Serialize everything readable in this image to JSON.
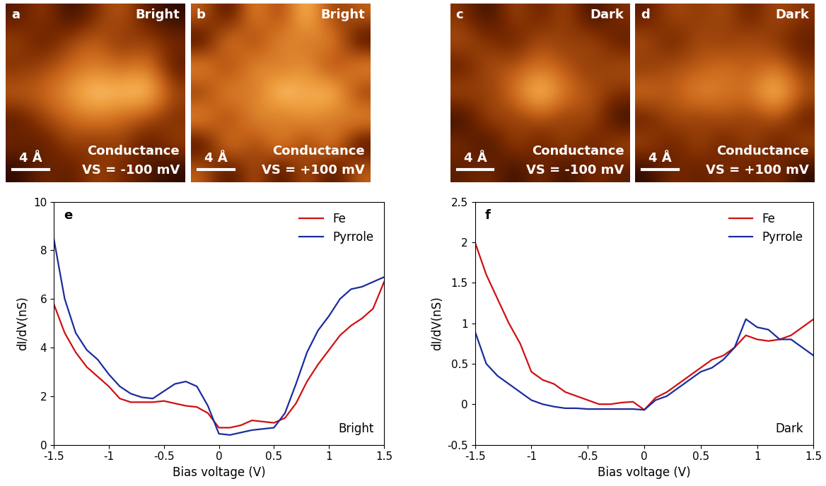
{
  "chart_data": [
    {
      "type": "heatmap",
      "panel": "a",
      "title": "Bright",
      "annotations": [
        "Conductance",
        "VS = -100 mV"
      ],
      "scale_bar": "4 Å",
      "tick_labels": false,
      "cells": [
        [
          0.3,
          0.5,
          0.2,
          0.4,
          0.6,
          0.3,
          0.2
        ],
        [
          0.5,
          0.3,
          0.5,
          0.6,
          0.4,
          0.5,
          0.4
        ],
        [
          0.4,
          0.5,
          0.6,
          0.7,
          0.6,
          0.7,
          0.3
        ],
        [
          0.6,
          0.6,
          0.8,
          0.95,
          0.9,
          1.0,
          0.5
        ],
        [
          0.3,
          0.5,
          0.6,
          0.7,
          0.6,
          0.5,
          0.4
        ],
        [
          0.4,
          0.3,
          0.5,
          0.4,
          0.5,
          0.3,
          0.5
        ],
        [
          0.2,
          0.4,
          0.3,
          0.5,
          0.4,
          0.3,
          0.2
        ]
      ]
    },
    {
      "type": "heatmap",
      "panel": "b",
      "title": "Bright",
      "annotations": [
        "Conductance",
        "VS = +100 mV"
      ],
      "scale_bar": "4 Å",
      "tick_labels": false,
      "cells": [
        [
          0.5,
          0.3,
          0.6,
          0.4,
          0.7,
          0.4,
          0.5
        ],
        [
          0.3,
          0.6,
          0.4,
          0.6,
          0.5,
          0.6,
          0.3
        ],
        [
          0.6,
          0.4,
          0.6,
          0.5,
          0.6,
          0.4,
          0.6
        ],
        [
          0.4,
          0.6,
          0.5,
          0.7,
          0.6,
          0.7,
          0.4
        ],
        [
          0.6,
          0.4,
          0.6,
          0.5,
          0.6,
          0.5,
          0.6
        ],
        [
          0.3,
          0.6,
          0.4,
          0.6,
          0.4,
          0.6,
          0.3
        ],
        [
          0.5,
          0.3,
          0.5,
          0.3,
          0.5,
          0.3,
          0.5
        ]
      ]
    },
    {
      "type": "heatmap",
      "panel": "c",
      "title": "Dark",
      "annotations": [
        "Conductance",
        "VS = -100 mV"
      ],
      "scale_bar": "4 Å",
      "tick_labels": false,
      "cells": [
        [
          0.5,
          0.3,
          0.6,
          0.4,
          0.6,
          0.3,
          0.5
        ],
        [
          0.6,
          0.5,
          0.4,
          0.6,
          0.5,
          0.6,
          0.4
        ],
        [
          0.4,
          0.6,
          0.6,
          0.7,
          0.6,
          0.5,
          0.6
        ],
        [
          0.6,
          0.5,
          0.7,
          1.0,
          0.7,
          0.6,
          0.5
        ],
        [
          0.3,
          0.6,
          0.5,
          0.6,
          0.5,
          0.6,
          0.3
        ],
        [
          0.5,
          0.3,
          0.6,
          0.4,
          0.6,
          0.4,
          0.6
        ],
        [
          0.4,
          0.5,
          0.3,
          0.5,
          0.3,
          0.5,
          0.4
        ]
      ]
    },
    {
      "type": "heatmap",
      "panel": "d",
      "title": "Dark",
      "annotations": [
        "Conductance",
        "VS = +100 mV"
      ],
      "scale_bar": "4 Å",
      "tick_labels": false,
      "cells": [
        [
          0.4,
          0.6,
          0.5,
          0.6,
          0.4,
          0.6,
          0.5
        ],
        [
          0.6,
          0.4,
          0.6,
          0.5,
          0.6,
          0.5,
          0.4
        ],
        [
          0.5,
          0.6,
          0.6,
          0.7,
          0.6,
          0.7,
          0.5
        ],
        [
          0.7,
          0.6,
          0.8,
          0.7,
          0.7,
          1.0,
          0.6
        ],
        [
          0.4,
          0.6,
          0.5,
          0.6,
          0.5,
          0.6,
          0.4
        ],
        [
          0.6,
          0.4,
          0.6,
          0.4,
          0.6,
          0.4,
          0.6
        ],
        [
          0.3,
          0.5,
          0.4,
          0.5,
          0.4,
          0.5,
          0.3
        ]
      ]
    },
    {
      "type": "line",
      "panel": "e",
      "annotation": "Bright",
      "x_label": "Bias voltage (V)",
      "y_label": "dI/dV(nS)",
      "xlim": [
        -1.5,
        1.5
      ],
      "xticks": [
        -1.5,
        -1,
        -0.5,
        0,
        0.5,
        1,
        1.5
      ],
      "ylim": [
        0,
        10
      ],
      "yticks": [
        0,
        2,
        4,
        6,
        8,
        10
      ],
      "legend": "upper right",
      "x": [
        -1.5,
        -1.4,
        -1.3,
        -1.2,
        -1.1,
        -1.0,
        -0.9,
        -0.8,
        -0.7,
        -0.6,
        -0.5,
        -0.4,
        -0.3,
        -0.2,
        -0.1,
        0.0,
        0.1,
        0.2,
        0.3,
        0.4,
        0.5,
        0.6,
        0.7,
        0.8,
        0.9,
        1.0,
        1.1,
        1.2,
        1.3,
        1.4,
        1.5
      ],
      "series": [
        {
          "name": "Fe",
          "color": "#d01010",
          "values": [
            5.8,
            4.6,
            3.8,
            3.2,
            2.8,
            2.4,
            1.9,
            1.75,
            1.75,
            1.75,
            1.8,
            1.7,
            1.6,
            1.55,
            1.3,
            0.7,
            0.7,
            0.8,
            1.0,
            0.95,
            0.9,
            1.1,
            1.7,
            2.6,
            3.3,
            3.9,
            4.5,
            4.9,
            5.2,
            5.6,
            6.7
          ]
        },
        {
          "name": "Pyrrole",
          "color": "#1c2c9c",
          "values": [
            8.5,
            6.0,
            4.6,
            3.9,
            3.5,
            2.9,
            2.4,
            2.1,
            1.95,
            1.9,
            2.2,
            2.5,
            2.6,
            2.4,
            1.6,
            0.45,
            0.4,
            0.5,
            0.6,
            0.65,
            0.7,
            1.3,
            2.5,
            3.8,
            4.7,
            5.3,
            6.0,
            6.4,
            6.5,
            6.7,
            6.9
          ]
        }
      ]
    },
    {
      "type": "line",
      "panel": "f",
      "annotation": "Dark",
      "x_label": "Bias voltage (V)",
      "y_label": "dI/dV(nS)",
      "xlim": [
        -1.5,
        1.5
      ],
      "xticks": [
        -1.5,
        -1,
        -0.5,
        0,
        0.5,
        1,
        1.5
      ],
      "ylim": [
        -0.5,
        2.5
      ],
      "yticks": [
        -0.5,
        0,
        0.5,
        1,
        1.5,
        2,
        2.5
      ],
      "legend": "upper right",
      "x": [
        -1.5,
        -1.4,
        -1.3,
        -1.2,
        -1.1,
        -1.0,
        -0.9,
        -0.8,
        -0.7,
        -0.6,
        -0.5,
        -0.4,
        -0.3,
        -0.2,
        -0.1,
        0.0,
        0.1,
        0.2,
        0.3,
        0.4,
        0.5,
        0.6,
        0.7,
        0.8,
        0.9,
        1.0,
        1.1,
        1.2,
        1.3,
        1.4,
        1.5
      ],
      "series": [
        {
          "name": "Fe",
          "color": "#d01010",
          "values": [
            2.0,
            1.6,
            1.3,
            1.0,
            0.75,
            0.4,
            0.3,
            0.25,
            0.15,
            0.1,
            0.05,
            0.0,
            0.0,
            0.02,
            0.03,
            -0.07,
            0.08,
            0.15,
            0.25,
            0.35,
            0.45,
            0.55,
            0.6,
            0.7,
            0.85,
            0.8,
            0.78,
            0.8,
            0.85,
            0.95,
            1.05
          ]
        },
        {
          "name": "Pyrrole",
          "color": "#1c2c9c",
          "values": [
            0.9,
            0.5,
            0.35,
            0.25,
            0.15,
            0.05,
            0.0,
            -0.03,
            -0.05,
            -0.05,
            -0.06,
            -0.06,
            -0.06,
            -0.06,
            -0.06,
            -0.07,
            0.05,
            0.1,
            0.2,
            0.3,
            0.4,
            0.45,
            0.55,
            0.7,
            1.05,
            0.95,
            0.92,
            0.8,
            0.8,
            0.7,
            0.6
          ]
        }
      ]
    }
  ]
}
